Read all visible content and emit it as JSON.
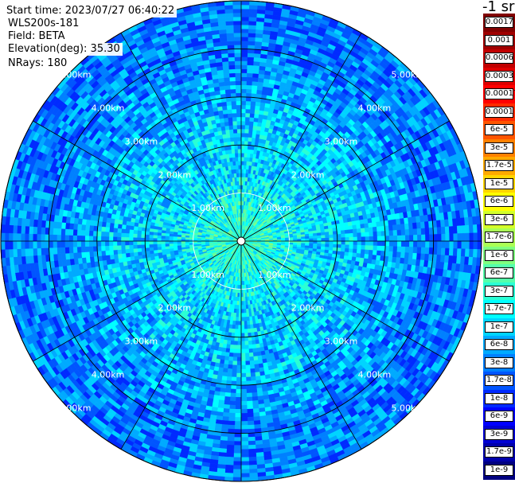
{
  "header": {
    "start_time": "Start time: 2023/07/27 06:40:22",
    "instrument": "WLS200s-181",
    "field": "Field: BETA",
    "elevation": "Elevation(deg): 35.30",
    "nrays": "NRays: 180"
  },
  "colorbar": {
    "units": "-1 sr",
    "labels": [
      "0.0017",
      "0.001",
      "0.0006",
      "0.0003",
      "0.00017",
      "0.0001",
      "6e-5",
      "3e-5",
      "1.7e-5",
      "1e-5",
      "6e-6",
      "3e-6",
      "1.7e-6",
      "1e-6",
      "6e-7",
      "3e-7",
      "1.7e-7",
      "1e-7",
      "6e-8",
      "3e-8",
      "1.7e-8",
      "1e-8",
      "6e-9",
      "3e-9",
      "1.7e-9",
      "1e-9"
    ],
    "colors": [
      "#800000",
      "#a00000",
      "#c00000",
      "#e00000",
      "#ff0000",
      "#ff2a00",
      "#ff5500",
      "#ff8000",
      "#ffaa00",
      "#ffd400",
      "#ffff00",
      "#d4ff2a",
      "#aaff55",
      "#80ff80",
      "#55ffaa",
      "#2affd4",
      "#00ffff",
      "#00d4ff",
      "#00aaff",
      "#0080ff",
      "#0055ff",
      "#002aff",
      "#0000ff",
      "#0000d4",
      "#0000aa",
      "#000080"
    ]
  },
  "chart_data": {
    "type": "heatmap",
    "projection": "polar PPI",
    "field": "BETA",
    "units": "-1 sr",
    "elevation_deg": 35.3,
    "nrays": 180,
    "range_rings_km": [
      1,
      2,
      3,
      4,
      5
    ],
    "range_labels": [
      "1.00km",
      "2.00km",
      "3.00km",
      "4.00km",
      "5.00km"
    ],
    "spoke_angles_deg": [
      0,
      30,
      60,
      90,
      120,
      150,
      180,
      210,
      240,
      270,
      300,
      330
    ],
    "max_range_km": 5.0,
    "values_by_range": [
      {
        "range_km": 0.5,
        "beta": 3e-07
      },
      {
        "range_km": 1.0,
        "beta": 1.7e-07
      },
      {
        "range_km": 1.5,
        "beta": 1e-07
      },
      {
        "range_km": 2.0,
        "beta": 1e-07
      },
      {
        "range_km": 3.0,
        "beta": 6e-08
      },
      {
        "range_km": 4.0,
        "beta": 3e-08
      },
      {
        "range_km": 5.0,
        "beta": 3e-08
      }
    ]
  }
}
